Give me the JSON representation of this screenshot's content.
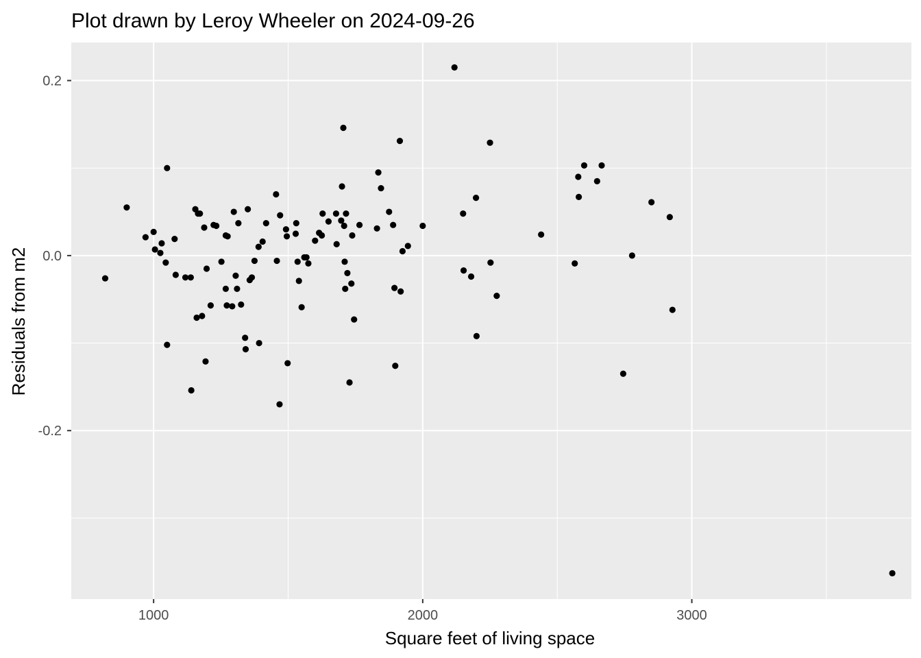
{
  "chart_data": {
    "type": "scatter",
    "title": "Plot drawn by Leroy Wheeler on 2024-09-26",
    "xlabel": "Square feet of living space",
    "ylabel": "Residuals from m2",
    "xlim": [
      694,
      3816
    ],
    "ylim": [
      -0.3925,
      0.2435
    ],
    "x_ticks": [
      1000,
      2000,
      3000
    ],
    "x_tick_labels": [
      "1000",
      "2000",
      "3000"
    ],
    "x_minor_ticks": [
      1500,
      2500,
      3500
    ],
    "y_ticks": [
      -0.2,
      0.0,
      0.2
    ],
    "y_tick_labels": [
      "-0.2",
      "0.0",
      "0.2"
    ],
    "y_minor_ticks": [
      -0.3,
      -0.1,
      0.1
    ],
    "grid": true,
    "legend": "none",
    "point_color": "#000000",
    "panel_background": "#ebebeb",
    "grid_color": "#ffffff",
    "points": [
      {
        "x": 820,
        "y": -0.026
      },
      {
        "x": 900,
        "y": 0.055
      },
      {
        "x": 970,
        "y": 0.021
      },
      {
        "x": 1000,
        "y": 0.027
      },
      {
        "x": 1005,
        "y": 0.007
      },
      {
        "x": 1025,
        "y": 0.003
      },
      {
        "x": 1030,
        "y": 0.014
      },
      {
        "x": 1045,
        "y": -0.008
      },
      {
        "x": 1050,
        "y": 0.1
      },
      {
        "x": 1050,
        "y": -0.102
      },
      {
        "x": 1078,
        "y": 0.019
      },
      {
        "x": 1082,
        "y": -0.022
      },
      {
        "x": 1118,
        "y": -0.025
      },
      {
        "x": 1138,
        "y": -0.025
      },
      {
        "x": 1140,
        "y": -0.154
      },
      {
        "x": 1155,
        "y": 0.053
      },
      {
        "x": 1160,
        "y": -0.071
      },
      {
        "x": 1165,
        "y": 0.048
      },
      {
        "x": 1172,
        "y": 0.048
      },
      {
        "x": 1180,
        "y": -0.069
      },
      {
        "x": 1188,
        "y": 0.032
      },
      {
        "x": 1193,
        "y": -0.121
      },
      {
        "x": 1197,
        "y": -0.015
      },
      {
        "x": 1212,
        "y": -0.057
      },
      {
        "x": 1223,
        "y": 0.035
      },
      {
        "x": 1233,
        "y": 0.034
      },
      {
        "x": 1252,
        "y": -0.007
      },
      {
        "x": 1268,
        "y": -0.038
      },
      {
        "x": 1268,
        "y": 0.023
      },
      {
        "x": 1272,
        "y": -0.057
      },
      {
        "x": 1275,
        "y": 0.022
      },
      {
        "x": 1292,
        "y": -0.058
      },
      {
        "x": 1298,
        "y": 0.05
      },
      {
        "x": 1305,
        "y": -0.023
      },
      {
        "x": 1310,
        "y": -0.038
      },
      {
        "x": 1315,
        "y": 0.037
      },
      {
        "x": 1325,
        "y": -0.056
      },
      {
        "x": 1340,
        "y": -0.094
      },
      {
        "x": 1342,
        "y": -0.107
      },
      {
        "x": 1350,
        "y": 0.053
      },
      {
        "x": 1357,
        "y": -0.028
      },
      {
        "x": 1365,
        "y": -0.025
      },
      {
        "x": 1375,
        "y": -0.006
      },
      {
        "x": 1390,
        "y": 0.01
      },
      {
        "x": 1392,
        "y": -0.1
      },
      {
        "x": 1405,
        "y": 0.016
      },
      {
        "x": 1418,
        "y": 0.037
      },
      {
        "x": 1455,
        "y": 0.07
      },
      {
        "x": 1458,
        "y": -0.006
      },
      {
        "x": 1468,
        "y": -0.17
      },
      {
        "x": 1470,
        "y": 0.046
      },
      {
        "x": 1492,
        "y": 0.03
      },
      {
        "x": 1495,
        "y": 0.022
      },
      {
        "x": 1498,
        "y": -0.123
      },
      {
        "x": 1528,
        "y": 0.025
      },
      {
        "x": 1530,
        "y": 0.037
      },
      {
        "x": 1535,
        "y": -0.007
      },
      {
        "x": 1540,
        "y": -0.029
      },
      {
        "x": 1550,
        "y": -0.059
      },
      {
        "x": 1560,
        "y": -0.002
      },
      {
        "x": 1568,
        "y": -0.002
      },
      {
        "x": 1575,
        "y": -0.009
      },
      {
        "x": 1600,
        "y": 0.017
      },
      {
        "x": 1615,
        "y": 0.026
      },
      {
        "x": 1625,
        "y": 0.023
      },
      {
        "x": 1628,
        "y": 0.048
      },
      {
        "x": 1650,
        "y": 0.039
      },
      {
        "x": 1678,
        "y": 0.048
      },
      {
        "x": 1680,
        "y": 0.013
      },
      {
        "x": 1697,
        "y": 0.04
      },
      {
        "x": 1700,
        "y": 0.079
      },
      {
        "x": 1705,
        "y": 0.146
      },
      {
        "x": 1708,
        "y": 0.034
      },
      {
        "x": 1710,
        "y": -0.007
      },
      {
        "x": 1712,
        "y": -0.038
      },
      {
        "x": 1715,
        "y": 0.048
      },
      {
        "x": 1720,
        "y": -0.02
      },
      {
        "x": 1728,
        "y": -0.145
      },
      {
        "x": 1735,
        "y": -0.032
      },
      {
        "x": 1738,
        "y": 0.023
      },
      {
        "x": 1745,
        "y": -0.073
      },
      {
        "x": 1765,
        "y": 0.035
      },
      {
        "x": 1830,
        "y": 0.031
      },
      {
        "x": 1835,
        "y": 0.095
      },
      {
        "x": 1845,
        "y": 0.077
      },
      {
        "x": 1875,
        "y": 0.05
      },
      {
        "x": 1890,
        "y": 0.035
      },
      {
        "x": 1895,
        "y": -0.037
      },
      {
        "x": 1898,
        "y": -0.126
      },
      {
        "x": 1915,
        "y": 0.131
      },
      {
        "x": 1918,
        "y": -0.041
      },
      {
        "x": 1925,
        "y": 0.005
      },
      {
        "x": 1945,
        "y": 0.011
      },
      {
        "x": 2000,
        "y": 0.034
      },
      {
        "x": 2118,
        "y": 0.215
      },
      {
        "x": 2150,
        "y": 0.048
      },
      {
        "x": 2152,
        "y": -0.017
      },
      {
        "x": 2180,
        "y": -0.024
      },
      {
        "x": 2198,
        "y": 0.066
      },
      {
        "x": 2200,
        "y": -0.092
      },
      {
        "x": 2250,
        "y": 0.129
      },
      {
        "x": 2252,
        "y": -0.008
      },
      {
        "x": 2275,
        "y": -0.046
      },
      {
        "x": 2440,
        "y": 0.024
      },
      {
        "x": 2565,
        "y": -0.009
      },
      {
        "x": 2578,
        "y": 0.09
      },
      {
        "x": 2580,
        "y": 0.067
      },
      {
        "x": 2600,
        "y": 0.103
      },
      {
        "x": 2648,
        "y": 0.085
      },
      {
        "x": 2665,
        "y": 0.103
      },
      {
        "x": 2745,
        "y": -0.135
      },
      {
        "x": 2778,
        "y": 0.0
      },
      {
        "x": 2850,
        "y": 0.061
      },
      {
        "x": 2918,
        "y": 0.044
      },
      {
        "x": 2928,
        "y": -0.062
      },
      {
        "x": 3745,
        "y": -0.363
      }
    ]
  }
}
